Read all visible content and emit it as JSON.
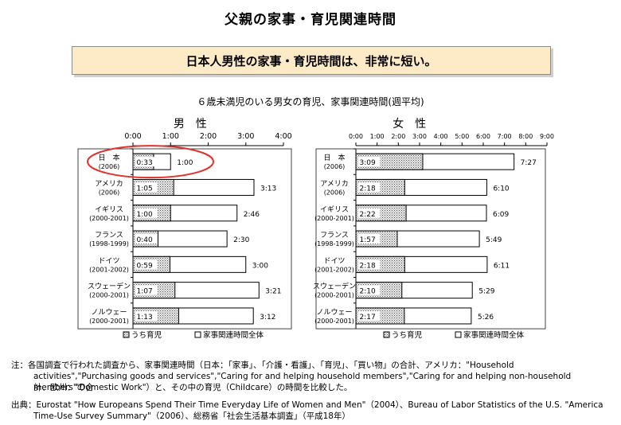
{
  "page": {
    "title": "父親の家事・育児関連時間",
    "banner": "日本人男性の家事・育児時間は、非常に短い。",
    "subtitle": "６歳未満児のいる男女の育児、家事関連時間(週平均)"
  },
  "notes": {
    "line1": "注：各国調査で行われた調査から、家事関連時間（日本：「家事」、「介護・看護」、「育児」、「買い物」の合計、アメリカ：\"Household",
    "line2": "activities\",\"Purchasing goods and services\",\"Caring for and helping household members\",\"Caring for and helping non-household members\"の合",
    "line3": "計、欧州：\"Domestic Work\"）と、その中の育児（Childcare）の時間を比較した。",
    "source1": "出典：Eurostat \"How Europeans Spend Their Time Everyday Life of Women and Men\"（2004）、Bureau of Labor Statistics of the U.S. \"America",
    "source2": "Time-Use Survey Summary\"（2006）、総務省「社会生活基本調査」（平成18年）"
  },
  "chart_data": [
    {
      "type": "bar",
      "orientation": "horizontal",
      "title": "男　性",
      "xticks": [
        "0:00",
        "1:00",
        "2:00",
        "3:00",
        "4:00"
      ],
      "xlim": [
        0,
        240
      ],
      "unit": "minutes",
      "categories": [
        {
          "name": "日　本",
          "sub": "(2006)"
        },
        {
          "name": "アメリカ",
          "sub": "(2006)"
        },
        {
          "name": "イギリス",
          "sub": "(2000-2001)"
        },
        {
          "name": "フランス",
          "sub": "(1998-1999)"
        },
        {
          "name": "ドイツ",
          "sub": "(2001-2002)"
        },
        {
          "name": "スウェーデン",
          "sub": "(2000-2001)"
        },
        {
          "name": "ノルウェー",
          "sub": "(2000-2001)"
        }
      ],
      "series": [
        {
          "name": "うち育児",
          "values": [
            33,
            65,
            60,
            40,
            59,
            67,
            73
          ],
          "labels": [
            "0:33",
            "1:05",
            "1:00",
            "0:40",
            "0:59",
            "1:07",
            "1:13"
          ]
        },
        {
          "name": "家事関連時間全体",
          "values": [
            60,
            193,
            166,
            150,
            180,
            201,
            192
          ],
          "labels": [
            "1:00",
            "3:13",
            "2:46",
            "2:30",
            "3:00",
            "3:21",
            "3:12"
          ]
        }
      ],
      "highlight": "日　本"
    },
    {
      "type": "bar",
      "orientation": "horizontal",
      "title": "女　性",
      "xticks": [
        "0:00",
        "1:00",
        "2:00",
        "3:00",
        "4:00",
        "5:00",
        "6:00",
        "7:00",
        "8:00",
        "9:00"
      ],
      "xlim": [
        0,
        540
      ],
      "unit": "minutes",
      "categories": [
        {
          "name": "日　本",
          "sub": "(2006)"
        },
        {
          "name": "アメリカ",
          "sub": "(2006)"
        },
        {
          "name": "イギリス",
          "sub": "(2000-2001)"
        },
        {
          "name": "フランス",
          "sub": "(1998-1999)"
        },
        {
          "name": "ドイツ",
          "sub": "(2001-2002)"
        },
        {
          "name": "スウェーデン",
          "sub": "(2000-2001)"
        },
        {
          "name": "ノルウェー",
          "sub": "(2000-2001)"
        }
      ],
      "series": [
        {
          "name": "うち育児",
          "values": [
            189,
            138,
            142,
            117,
            138,
            130,
            137
          ],
          "labels": [
            "3:09",
            "2:18",
            "2:22",
            "1:57",
            "2:18",
            "2:10",
            "2:17"
          ]
        },
        {
          "name": "家事関連時間全体",
          "values": [
            447,
            370,
            369,
            349,
            371,
            329,
            326
          ],
          "labels": [
            "7:27",
            "6:10",
            "6:09",
            "5:49",
            "6:11",
            "5:29",
            "5:26"
          ]
        }
      ]
    }
  ]
}
